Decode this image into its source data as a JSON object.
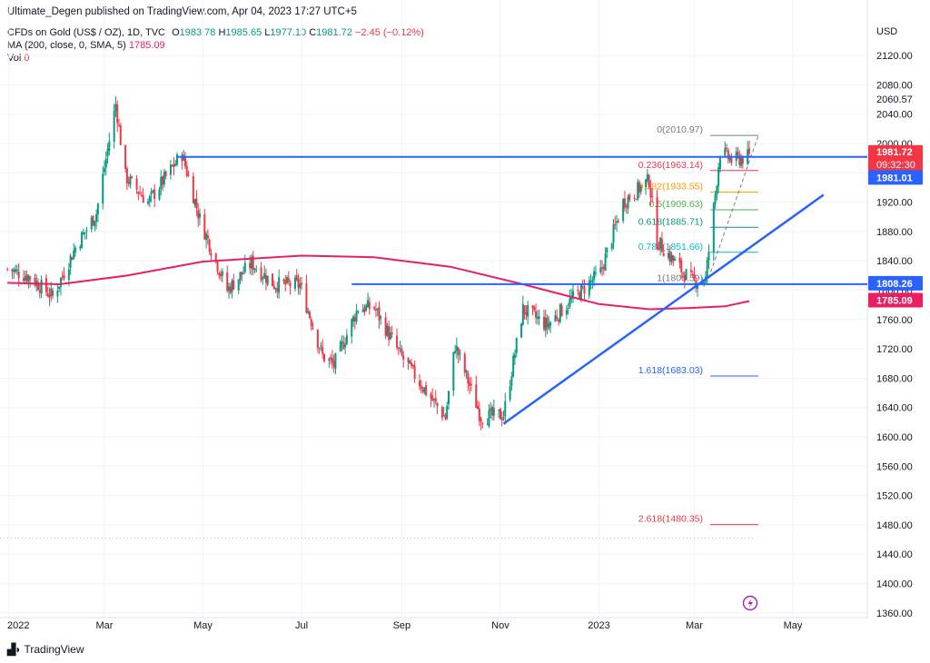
{
  "publisher": "Ultimate_Degen published on TradingView.com, Apr 04, 2023 17:27 UTC+5",
  "legend": {
    "symbol": "CFDs on Gold (US$ / OZ), 1D, TVC",
    "o_label": "O",
    "o": "1983.78",
    "h_label": "H",
    "h": "1985.65",
    "l_label": "L",
    "l": "1977.10",
    "c_label": "C",
    "c": "1981.72",
    "change": "−2.45 (−0.12%)",
    "ma_label": "MA (200, close, 0, SMA, 5)",
    "ma_value": "1785.09",
    "vol_label": "Vol",
    "vol_value": "0"
  },
  "footer": {
    "logo_text": "TradingView",
    "logo_icon": "tradingview-logo-icon"
  },
  "colors": {
    "up": "#089981",
    "down": "#f23645",
    "ma": "#e91e63",
    "hline": "#2962ff",
    "trend": "#2962ff",
    "grid": "#f0f3fa",
    "axis_text": "#131722"
  },
  "chart_data": {
    "type": "candlestick",
    "title": "CFDs on Gold (US$ / OZ)",
    "y_unit": "USD",
    "ylim": [
      1352,
      2200
    ],
    "y_ticks": [
      2120,
      2080,
      2040,
      2000,
      1960,
      1920,
      1880,
      1840,
      1800,
      1760,
      1720,
      1680,
      1640,
      1600,
      1560,
      1520,
      1480,
      1440,
      1400,
      1360
    ],
    "x_ticks": [
      "2022",
      "Mar",
      "May",
      "Jul",
      "Sep",
      "Nov",
      "2023",
      "Mar",
      "May"
    ],
    "x_tick_dates": [
      "2022-01-01",
      "2022-03-01",
      "2022-05-01",
      "2022-07-01",
      "2022-09-01",
      "2022-11-01",
      "2023-01-01",
      "2023-03-01",
      "2023-05-01"
    ],
    "x_range": [
      "2021-12-31",
      "2023-05-31"
    ],
    "price_path": [
      [
        "2021-12-31",
        1829
      ],
      [
        "2022-01-14",
        1818
      ],
      [
        "2022-01-28",
        1791
      ],
      [
        "2022-02-11",
        1858
      ],
      [
        "2022-02-24",
        1905
      ],
      [
        "2022-03-08",
        2054
      ],
      [
        "2022-03-14",
        1955
      ],
      [
        "2022-03-28",
        1920
      ],
      [
        "2022-04-18",
        1986
      ],
      [
        "2022-04-29",
        1897
      ],
      [
        "2022-05-16",
        1800
      ],
      [
        "2022-05-31",
        1837
      ],
      [
        "2022-06-14",
        1808
      ],
      [
        "2022-06-30",
        1807
      ],
      [
        "2022-07-14",
        1710
      ],
      [
        "2022-07-21",
        1698
      ],
      [
        "2022-08-05",
        1776
      ],
      [
        "2022-08-15",
        1776
      ],
      [
        "2022-08-31",
        1712
      ],
      [
        "2022-09-15",
        1665
      ],
      [
        "2022-09-28",
        1626
      ],
      [
        "2022-10-04",
        1725
      ],
      [
        "2022-10-20",
        1627
      ],
      [
        "2022-11-03",
        1630
      ],
      [
        "2022-11-15",
        1774
      ],
      [
        "2022-11-30",
        1752
      ],
      [
        "2022-12-15",
        1787
      ],
      [
        "2023-01-02",
        1824
      ],
      [
        "2023-01-16",
        1920
      ],
      [
        "2023-02-01",
        1950
      ],
      [
        "2023-02-06",
        1867
      ],
      [
        "2023-02-22",
        1825
      ],
      [
        "2023-02-28",
        1812
      ],
      [
        "2023-03-08",
        1815
      ],
      [
        "2023-03-13",
        1912
      ],
      [
        "2023-03-17",
        1990
      ],
      [
        "2023-03-24",
        1977
      ],
      [
        "2023-04-04",
        1982
      ]
    ],
    "ma_200": [
      [
        "2021-12-31",
        1810
      ],
      [
        "2022-02-01",
        1808
      ],
      [
        "2022-03-15",
        1820
      ],
      [
        "2022-05-01",
        1839
      ],
      [
        "2022-07-01",
        1847
      ],
      [
        "2022-08-15",
        1845
      ],
      [
        "2022-10-01",
        1832
      ],
      [
        "2022-11-15",
        1808
      ],
      [
        "2023-01-01",
        1781
      ],
      [
        "2023-02-01",
        1774
      ],
      [
        "2023-03-01",
        1776
      ],
      [
        "2023-03-20",
        1778
      ],
      [
        "2023-04-04",
        1785.09
      ]
    ],
    "horizontal_lines": [
      {
        "value": 1981.72,
        "start": "2022-04-15",
        "label": "1981.72",
        "label2": "09:32:30"
      },
      {
        "value": 1808.26,
        "start": "2022-08-01",
        "label": "1808.26"
      }
    ],
    "trendline": {
      "from": [
        "2022-11-03",
        1618
      ],
      "to": [
        "2023-05-20",
        1930
      ]
    },
    "fibonacci": [
      {
        "level": "0",
        "value": 2010.97,
        "color": "#787b86",
        "text": "0(2010.97)"
      },
      {
        "level": "0.236",
        "value": 1963.14,
        "color": "#f23645",
        "text": "0.236(1963.14)"
      },
      {
        "level": "0.382",
        "value": 1933.55,
        "color": "#ff9800",
        "text": "0.382(1933.55)"
      },
      {
        "level": "0.5",
        "value": 1909.63,
        "color": "#4caf50",
        "text": "0.5(1909.63)"
      },
      {
        "level": "0.618",
        "value": 1885.71,
        "color": "#089981",
        "text": "0.618(1885.71)"
      },
      {
        "level": "0.786",
        "value": 1851.66,
        "color": "#00bcd4",
        "text": "0.786(1851.66)"
      },
      {
        "level": "1",
        "value": 1808.59,
        "color": "#787b86",
        "text": "1(1808.59)"
      },
      {
        "level": "1.618",
        "value": 1683.03,
        "color": "#2962ff",
        "text": "1.618(1683.03)"
      },
      {
        "level": "2.618",
        "value": 1480.35,
        "color": "#f23645",
        "text": "2.618(1480.35)"
      }
    ],
    "axis_badges": [
      {
        "value": 2060.57,
        "text": "2060.57",
        "style": "plain"
      },
      {
        "value": 1981.72,
        "text": "1981.72",
        "style": "red"
      },
      {
        "value": 1981.01,
        "text": "1981.01",
        "style": "blue"
      },
      {
        "value": 1808.26,
        "text": "1808.26",
        "style": "blue"
      },
      {
        "value": 1785.09,
        "text": "1785.09",
        "style": "ma"
      }
    ]
  }
}
